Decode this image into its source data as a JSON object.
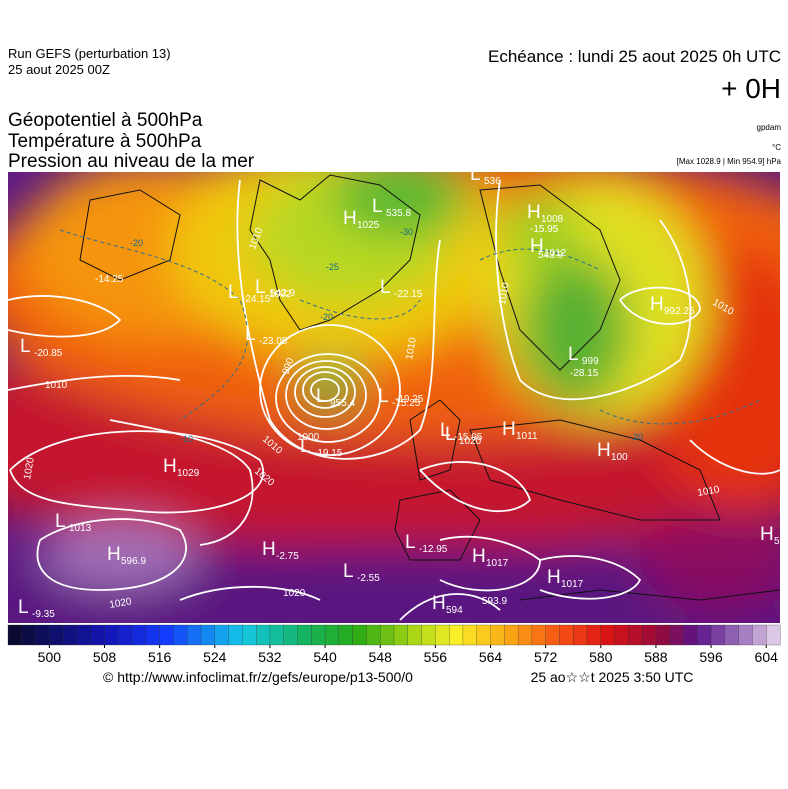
{
  "header": {
    "run": "Run GEFS (perturbation 13)",
    "run_date": "25 aout 2025 00Z",
    "echeance": "Echéance : lundi 25 aout 2025 0h UTC",
    "offset": "+ 0H",
    "fields": [
      "Géopotentiel à 500hPa",
      "Température à 500hPa",
      "Pression au niveau de la mer"
    ],
    "unit_gpdam": "gpdam",
    "unit_c": "°C",
    "range": "[Max 1028.9 | Min 954.9] hPa"
  },
  "map": {
    "centers": [
      {
        "letter": "H",
        "value": "1025"
      },
      {
        "letter": "L",
        "value": "1002"
      },
      {
        "letter": "L",
        "value": "-24.15"
      },
      {
        "letter": "L",
        "value": "-23.05"
      },
      {
        "letter": "L",
        "value": "-22.15"
      },
      {
        "letter": "L",
        "value": "-20.85"
      },
      {
        "letter": "L",
        "value": "955.4"
      },
      {
        "letter": "L",
        "value": "-15.25"
      },
      {
        "letter": "L",
        "value": "-19.15"
      },
      {
        "letter": "H",
        "value": "1029"
      },
      {
        "letter": "L",
        "value": "1013"
      },
      {
        "letter": "H",
        "value": "596.9"
      },
      {
        "letter": "H",
        "value": "-2.75"
      },
      {
        "letter": "L",
        "value": "-2.55"
      },
      {
        "letter": "L",
        "value": "-9.35"
      },
      {
        "letter": "H",
        "value": "1017"
      },
      {
        "letter": "H",
        "value": "1017"
      },
      {
        "letter": "H",
        "value": "594"
      },
      {
        "letter": "L",
        "value": "-12.95"
      },
      {
        "letter": "L",
        "value": "-15.95"
      },
      {
        "letter": "H",
        "value": "1011"
      },
      {
        "letter": "H",
        "value": "100"
      },
      {
        "letter": "L",
        "value": "999"
      },
      {
        "letter": "H",
        "value": "992.25"
      },
      {
        "letter": "H",
        "value": "1012"
      },
      {
        "letter": "H",
        "value": "1008"
      },
      {
        "letter": "L",
        "value": "535.8"
      },
      {
        "letter": "L",
        "value": "536"
      },
      {
        "letter": "L",
        "value": "1020"
      },
      {
        "letter": "H",
        "value": "5"
      }
    ],
    "value_labels": [
      "593.9",
      "542.9",
      "543.9",
      "-15.95",
      "-28.15",
      "-14.25",
      "-19.25"
    ],
    "isobar_labels": [
      "1010",
      "1010",
      "1010",
      "1020",
      "1020",
      "1020",
      "1020",
      "1010",
      "1010",
      "1000",
      "990",
      "1010",
      "1010"
    ],
    "isotherm_labels": [
      "-20",
      "-20",
      "-20",
      "-25",
      "-10",
      "-30"
    ]
  },
  "colorbar": {
    "lim": [
      494,
      606
    ],
    "ticks": [
      500,
      508,
      516,
      524,
      532,
      540,
      548,
      556,
      564,
      572,
      580,
      588,
      596,
      604
    ]
  },
  "footer": {
    "url": "© http://www.infoclimat.fr/z/gefs/europe/p13-500/0",
    "timestamp": "25 ao☆☆t 2025  3:50 UTC"
  }
}
